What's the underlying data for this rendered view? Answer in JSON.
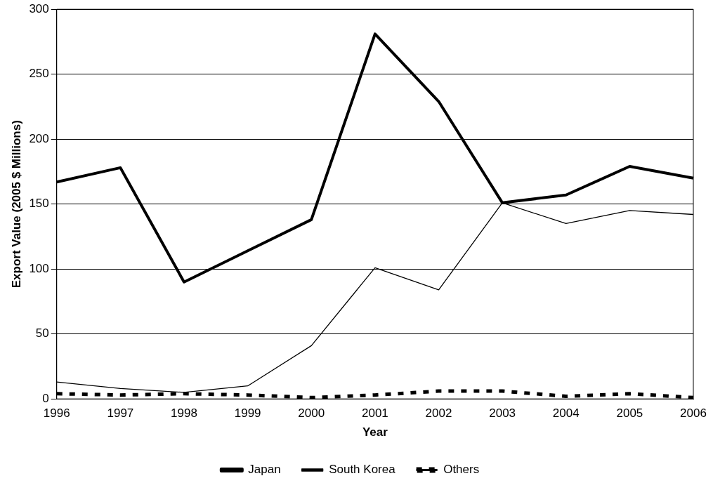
{
  "chart_data": {
    "type": "line",
    "xlabel": "Year",
    "ylabel": "Export Value (2005 $ Millions)",
    "categories": [
      "1996",
      "1997",
      "1998",
      "1999",
      "2000",
      "2001",
      "2002",
      "2003",
      "2004",
      "2005",
      "2006"
    ],
    "series": [
      {
        "name": "Japan",
        "color": "#000000",
        "line_style": "solid",
        "values": [
          167,
          178,
          90,
          114,
          138,
          281,
          229,
          151,
          157,
          179,
          170
        ]
      },
      {
        "name": "South Korea",
        "color": "#000000",
        "line_style": "solid",
        "values": [
          13,
          8,
          5,
          10,
          41,
          101,
          84,
          151,
          135,
          145,
          142
        ]
      },
      {
        "name": "Others",
        "color": "#000000",
        "line_style": "dashed",
        "values": [
          4,
          3,
          4,
          3,
          1,
          3,
          6,
          6,
          2,
          4,
          1
        ]
      }
    ],
    "ylim": [
      0,
      300
    ],
    "yticks": [
      0,
      50,
      100,
      150,
      200,
      250,
      300
    ],
    "grid": "y",
    "legend": "bottom",
    "marker": "none"
  }
}
